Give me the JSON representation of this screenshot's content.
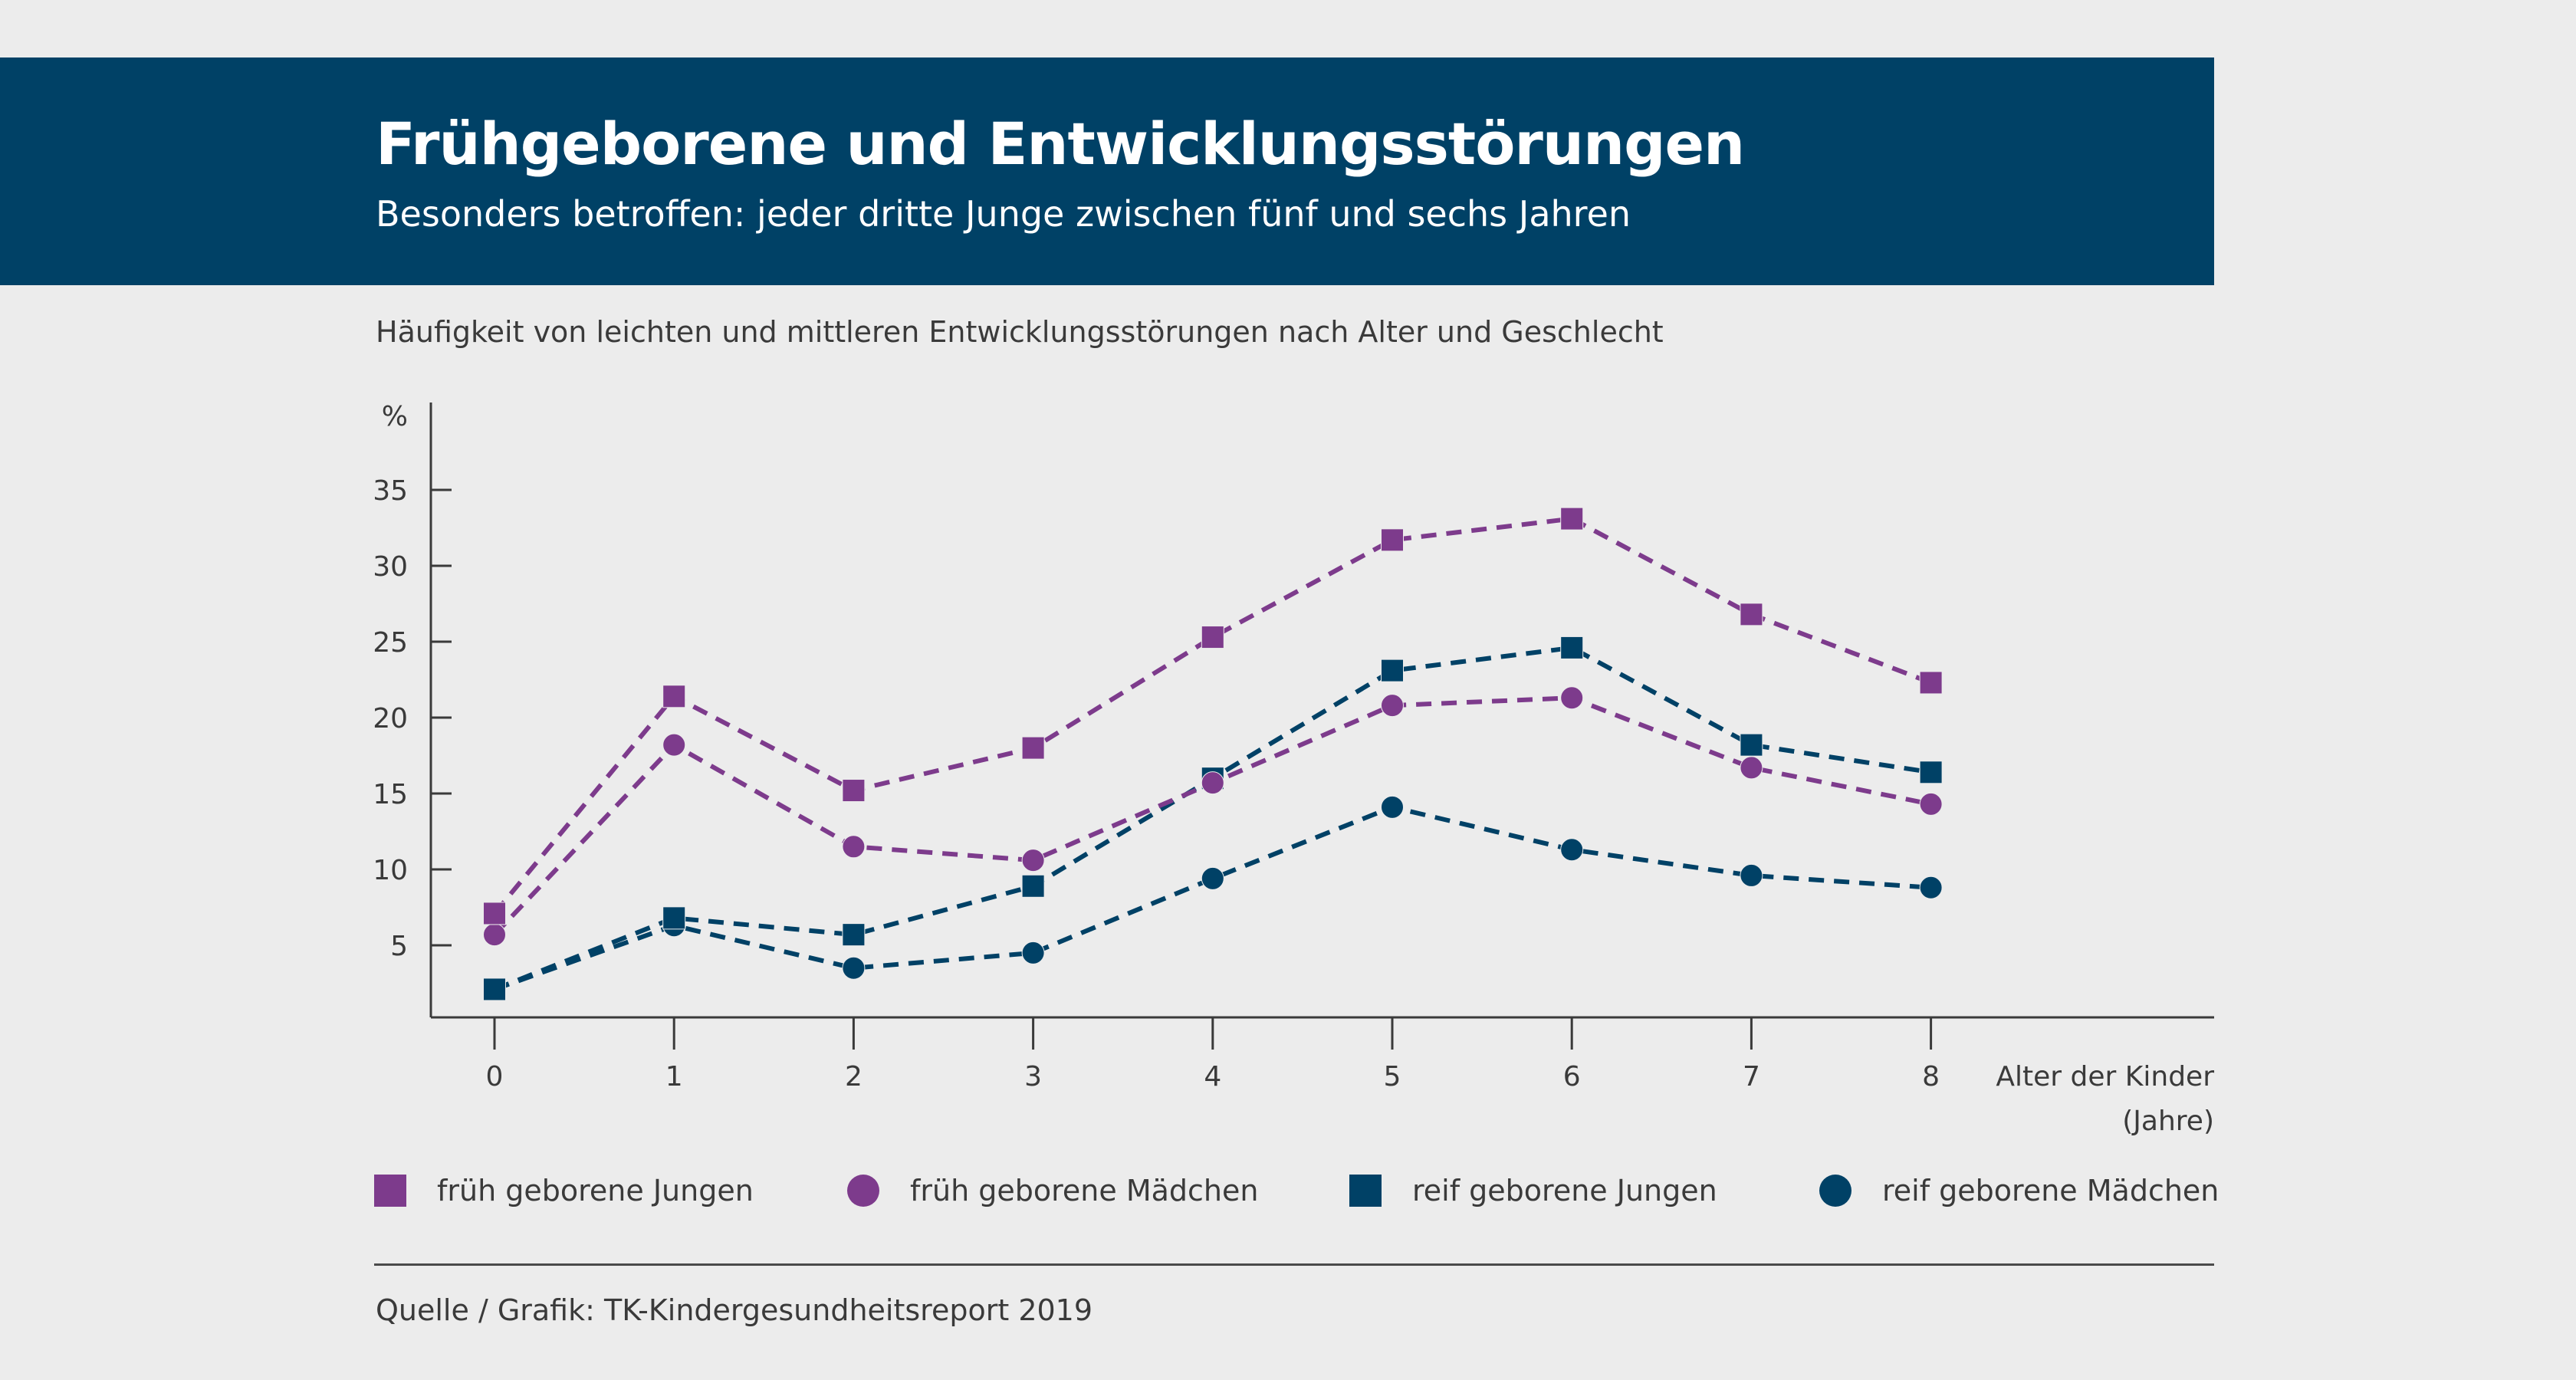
{
  "header": {
    "title": "Frühgeborene und Entwicklungsstörungen",
    "subtitle": "Besonders betroffen: jeder dritte Junge zwischen fünf und sechs Jahren",
    "banner_color": "#004166"
  },
  "chart_subtitle": "Häufigkeit von leichten und mittleren Entwicklungsstörungen nach Alter und Geschlecht",
  "source": "Quelle / Grafik: TK-Kindergesundheitsreport 2019",
  "chart_data": {
    "type": "line",
    "title": "Häufigkeit von leichten und mittleren Entwicklungsstörungen nach Alter und Geschlecht",
    "xlabel": "Alter der Kinder (Jahre)",
    "xlabel_lines": [
      "Alter der Kinder",
      "(Jahre)"
    ],
    "ylabel": "%",
    "x": [
      0,
      1,
      2,
      3,
      4,
      5,
      6,
      7,
      8
    ],
    "x_tick_labels": [
      "0",
      "1",
      "2",
      "3",
      "4",
      "5",
      "6",
      "7",
      "8"
    ],
    "y_ticks": [
      5,
      10,
      15,
      20,
      25,
      30,
      35
    ],
    "y_tick_labels": [
      "5",
      "10",
      "15",
      "20",
      "25",
      "30",
      "35"
    ],
    "ylim": [
      0,
      39
    ],
    "xlim": [
      -0.35,
      10.3
    ],
    "grid": false,
    "line_style": "dashed",
    "legend_position": "bottom",
    "series": [
      {
        "name": "früh geborene Jungen",
        "marker": "square",
        "color": "#7d3b8c",
        "values": [
          7.1,
          21.4,
          15.2,
          18.0,
          25.3,
          31.7,
          33.1,
          26.8,
          22.3
        ]
      },
      {
        "name": "früh geborene Mädchen",
        "marker": "circle",
        "color": "#7d3b8c",
        "values": [
          5.7,
          18.2,
          11.5,
          10.6,
          15.7,
          20.8,
          21.3,
          16.7,
          14.3
        ]
      },
      {
        "name": "reif geborene Jungen",
        "marker": "square",
        "color": "#004166",
        "values": [
          2.1,
          6.8,
          5.7,
          8.9,
          16.0,
          23.1,
          24.6,
          18.2,
          16.4
        ]
      },
      {
        "name": "reif geborene Mädchen",
        "marker": "circle",
        "color": "#004166",
        "values": [
          2.1,
          6.3,
          3.5,
          4.5,
          9.4,
          14.1,
          11.3,
          9.6,
          8.8
        ]
      }
    ]
  }
}
